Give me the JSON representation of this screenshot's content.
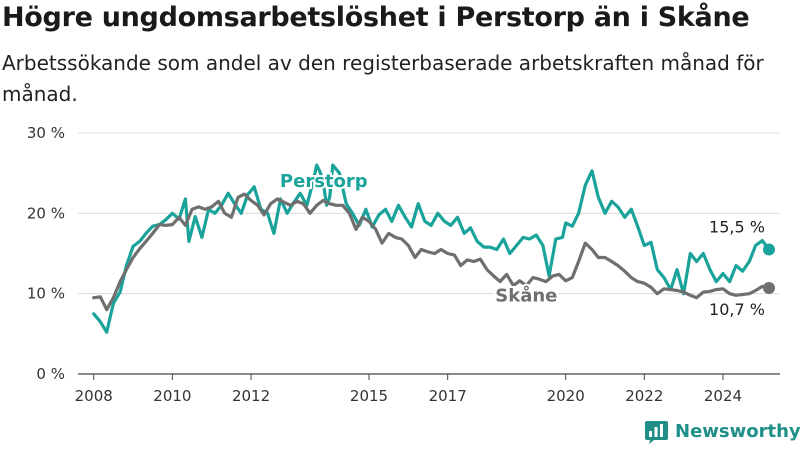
{
  "title": "Högre ungdomsarbetslöshet i Perstorp än i Skåne",
  "subtitle": "Arbetssökande som andel av den registerbaserade arbetskraften månad för månad.",
  "brand": "Newsworthy",
  "colors": {
    "perstorp": "#1aa39a",
    "skane": "#6f6f6f",
    "grid": "#dcdcdc",
    "brand": "#1f8f88"
  },
  "icons": {
    "brand": "bar-chart-icon"
  },
  "chart_data": {
    "type": "line",
    "ylim": [
      0,
      30
    ],
    "xlim": [
      2007.6,
      2025.45
    ],
    "y_ticks": [
      0,
      10,
      20,
      30
    ],
    "y_tick_labels": [
      "0 %",
      "10 %",
      "20 %",
      "30 %"
    ],
    "x_ticks": [
      2008,
      2010,
      2012,
      2015,
      2017,
      2020,
      2022,
      2024
    ],
    "x_tick_labels": [
      "2008",
      "2010",
      "2012",
      "2015",
      "2017",
      "2020",
      "2022",
      "2024"
    ],
    "grid": true,
    "series": [
      {
        "name": "Perstorp",
        "color": "#1aa39a",
        "end_label": "15,5 %",
        "points": [
          [
            2008.0,
            7.5
          ],
          [
            2008.17,
            6.5
          ],
          [
            2008.33,
            5.2
          ],
          [
            2008.5,
            8.8
          ],
          [
            2008.67,
            10.2
          ],
          [
            2008.83,
            13.5
          ],
          [
            2009.0,
            15.9
          ],
          [
            2009.17,
            16.5
          ],
          [
            2009.33,
            17.5
          ],
          [
            2009.5,
            18.4
          ],
          [
            2009.67,
            18.6
          ],
          [
            2009.83,
            19.2
          ],
          [
            2010.0,
            20.0
          ],
          [
            2010.17,
            19.3
          ],
          [
            2010.33,
            21.8
          ],
          [
            2010.42,
            16.5
          ],
          [
            2010.58,
            19.6
          ],
          [
            2010.75,
            17.0
          ],
          [
            2010.92,
            20.5
          ],
          [
            2011.08,
            20.0
          ],
          [
            2011.25,
            21.0
          ],
          [
            2011.42,
            22.5
          ],
          [
            2011.58,
            21.2
          ],
          [
            2011.75,
            20.0
          ],
          [
            2011.92,
            22.4
          ],
          [
            2012.0,
            22.8
          ],
          [
            2012.08,
            23.3
          ],
          [
            2012.25,
            20.5
          ],
          [
            2012.42,
            20.0
          ],
          [
            2012.58,
            17.5
          ],
          [
            2012.75,
            21.8
          ],
          [
            2012.92,
            20.0
          ],
          [
            2013.08,
            21.3
          ],
          [
            2013.25,
            22.5
          ],
          [
            2013.42,
            21.0
          ],
          [
            2013.58,
            24.0
          ],
          [
            2013.67,
            26.0
          ],
          [
            2013.75,
            25.2
          ],
          [
            2013.83,
            24.0
          ],
          [
            2013.92,
            21.0
          ],
          [
            2014.0,
            22.0
          ],
          [
            2014.08,
            26.0
          ],
          [
            2014.25,
            25.0
          ],
          [
            2014.42,
            21.2
          ],
          [
            2014.58,
            20.0
          ],
          [
            2014.75,
            18.5
          ],
          [
            2014.92,
            20.5
          ],
          [
            2015.08,
            18.3
          ],
          [
            2015.25,
            19.8
          ],
          [
            2015.42,
            20.5
          ],
          [
            2015.58,
            19.0
          ],
          [
            2015.75,
            21.0
          ],
          [
            2015.92,
            19.5
          ],
          [
            2016.08,
            18.3
          ],
          [
            2016.25,
            21.2
          ],
          [
            2016.42,
            19.0
          ],
          [
            2016.58,
            18.5
          ],
          [
            2016.75,
            20.0
          ],
          [
            2016.92,
            19.0
          ],
          [
            2017.08,
            18.5
          ],
          [
            2017.25,
            19.5
          ],
          [
            2017.42,
            17.5
          ],
          [
            2017.58,
            18.2
          ],
          [
            2017.75,
            16.5
          ],
          [
            2017.92,
            15.8
          ],
          [
            2018.08,
            15.8
          ],
          [
            2018.25,
            15.5
          ],
          [
            2018.42,
            16.8
          ],
          [
            2018.58,
            15.0
          ],
          [
            2018.75,
            16.0
          ],
          [
            2018.92,
            17.0
          ],
          [
            2019.08,
            16.8
          ],
          [
            2019.25,
            17.3
          ],
          [
            2019.42,
            16.0
          ],
          [
            2019.58,
            12.2
          ],
          [
            2019.75,
            16.8
          ],
          [
            2019.92,
            17.0
          ],
          [
            2020.0,
            18.8
          ],
          [
            2020.17,
            18.4
          ],
          [
            2020.33,
            20.0
          ],
          [
            2020.5,
            23.5
          ],
          [
            2020.67,
            25.3
          ],
          [
            2020.83,
            22.0
          ],
          [
            2021.0,
            20.0
          ],
          [
            2021.17,
            21.5
          ],
          [
            2021.33,
            20.8
          ],
          [
            2021.5,
            19.5
          ],
          [
            2021.67,
            20.5
          ],
          [
            2021.83,
            18.4
          ],
          [
            2022.0,
            16.0
          ],
          [
            2022.17,
            16.4
          ],
          [
            2022.33,
            13.0
          ],
          [
            2022.5,
            12.0
          ],
          [
            2022.67,
            10.5
          ],
          [
            2022.83,
            13.0
          ],
          [
            2023.0,
            10.0
          ],
          [
            2023.17,
            15.0
          ],
          [
            2023.33,
            14.0
          ],
          [
            2023.5,
            15.0
          ],
          [
            2023.67,
            13.0
          ],
          [
            2023.83,
            11.5
          ],
          [
            2024.0,
            12.5
          ],
          [
            2024.17,
            11.5
          ],
          [
            2024.33,
            13.5
          ],
          [
            2024.5,
            12.8
          ],
          [
            2024.67,
            14.0
          ],
          [
            2024.83,
            16.0
          ],
          [
            2025.0,
            16.6
          ],
          [
            2025.17,
            15.5
          ]
        ]
      },
      {
        "name": "Skåne",
        "color": "#6f6f6f",
        "end_label": "10,7 %",
        "points": [
          [
            2008.0,
            9.5
          ],
          [
            2008.17,
            9.6
          ],
          [
            2008.33,
            8.0
          ],
          [
            2008.5,
            9.5
          ],
          [
            2008.67,
            11.5
          ],
          [
            2008.83,
            13.0
          ],
          [
            2009.0,
            14.5
          ],
          [
            2009.17,
            15.6
          ],
          [
            2009.33,
            16.5
          ],
          [
            2009.5,
            17.5
          ],
          [
            2009.67,
            18.6
          ],
          [
            2009.83,
            18.5
          ],
          [
            2010.0,
            18.6
          ],
          [
            2010.17,
            19.5
          ],
          [
            2010.33,
            18.5
          ],
          [
            2010.5,
            20.5
          ],
          [
            2010.67,
            20.8
          ],
          [
            2010.83,
            20.5
          ],
          [
            2011.0,
            20.8
          ],
          [
            2011.17,
            21.5
          ],
          [
            2011.33,
            20.0
          ],
          [
            2011.5,
            19.5
          ],
          [
            2011.67,
            22.0
          ],
          [
            2011.83,
            22.4
          ],
          [
            2012.0,
            21.6
          ],
          [
            2012.17,
            21.0
          ],
          [
            2012.33,
            19.8
          ],
          [
            2012.5,
            21.2
          ],
          [
            2012.67,
            21.8
          ],
          [
            2012.83,
            21.4
          ],
          [
            2013.0,
            21.0
          ],
          [
            2013.17,
            21.5
          ],
          [
            2013.33,
            21.2
          ],
          [
            2013.5,
            20.0
          ],
          [
            2013.67,
            21.0
          ],
          [
            2013.83,
            21.6
          ],
          [
            2014.0,
            21.2
          ],
          [
            2014.17,
            21.0
          ],
          [
            2014.33,
            21.0
          ],
          [
            2014.5,
            20.0
          ],
          [
            2014.67,
            18.0
          ],
          [
            2014.83,
            19.5
          ],
          [
            2015.0,
            19.0
          ],
          [
            2015.17,
            18.0
          ],
          [
            2015.33,
            16.3
          ],
          [
            2015.5,
            17.5
          ],
          [
            2015.67,
            17.0
          ],
          [
            2015.83,
            16.8
          ],
          [
            2016.0,
            16.0
          ],
          [
            2016.17,
            14.5
          ],
          [
            2016.33,
            15.5
          ],
          [
            2016.5,
            15.2
          ],
          [
            2016.67,
            15.0
          ],
          [
            2016.83,
            15.5
          ],
          [
            2017.0,
            15.0
          ],
          [
            2017.17,
            14.8
          ],
          [
            2017.33,
            13.5
          ],
          [
            2017.5,
            14.2
          ],
          [
            2017.67,
            14.0
          ],
          [
            2017.83,
            14.3
          ],
          [
            2018.0,
            13.0
          ],
          [
            2018.17,
            12.2
          ],
          [
            2018.33,
            11.5
          ],
          [
            2018.5,
            12.4
          ],
          [
            2018.67,
            11.0
          ],
          [
            2018.83,
            11.6
          ],
          [
            2019.0,
            11.0
          ],
          [
            2019.17,
            12.0
          ],
          [
            2019.33,
            11.8
          ],
          [
            2019.5,
            11.5
          ],
          [
            2019.67,
            12.2
          ],
          [
            2019.83,
            12.4
          ],
          [
            2020.0,
            11.6
          ],
          [
            2020.17,
            12.0
          ],
          [
            2020.33,
            14.0
          ],
          [
            2020.5,
            16.3
          ],
          [
            2020.67,
            15.5
          ],
          [
            2020.83,
            14.5
          ],
          [
            2021.0,
            14.5
          ],
          [
            2021.17,
            14.0
          ],
          [
            2021.33,
            13.5
          ],
          [
            2021.5,
            12.8
          ],
          [
            2021.67,
            12.0
          ],
          [
            2021.83,
            11.5
          ],
          [
            2022.0,
            11.3
          ],
          [
            2022.17,
            10.8
          ],
          [
            2022.33,
            10.0
          ],
          [
            2022.5,
            10.6
          ],
          [
            2022.67,
            10.5
          ],
          [
            2022.83,
            10.4
          ],
          [
            2023.0,
            10.2
          ],
          [
            2023.17,
            9.8
          ],
          [
            2023.33,
            9.5
          ],
          [
            2023.5,
            10.2
          ],
          [
            2023.67,
            10.3
          ],
          [
            2023.83,
            10.5
          ],
          [
            2024.0,
            10.6
          ],
          [
            2024.17,
            10.0
          ],
          [
            2024.33,
            9.8
          ],
          [
            2024.5,
            9.9
          ],
          [
            2024.67,
            10.0
          ],
          [
            2024.83,
            10.4
          ],
          [
            2025.0,
            10.9
          ],
          [
            2025.17,
            10.7
          ]
        ]
      }
    ]
  }
}
